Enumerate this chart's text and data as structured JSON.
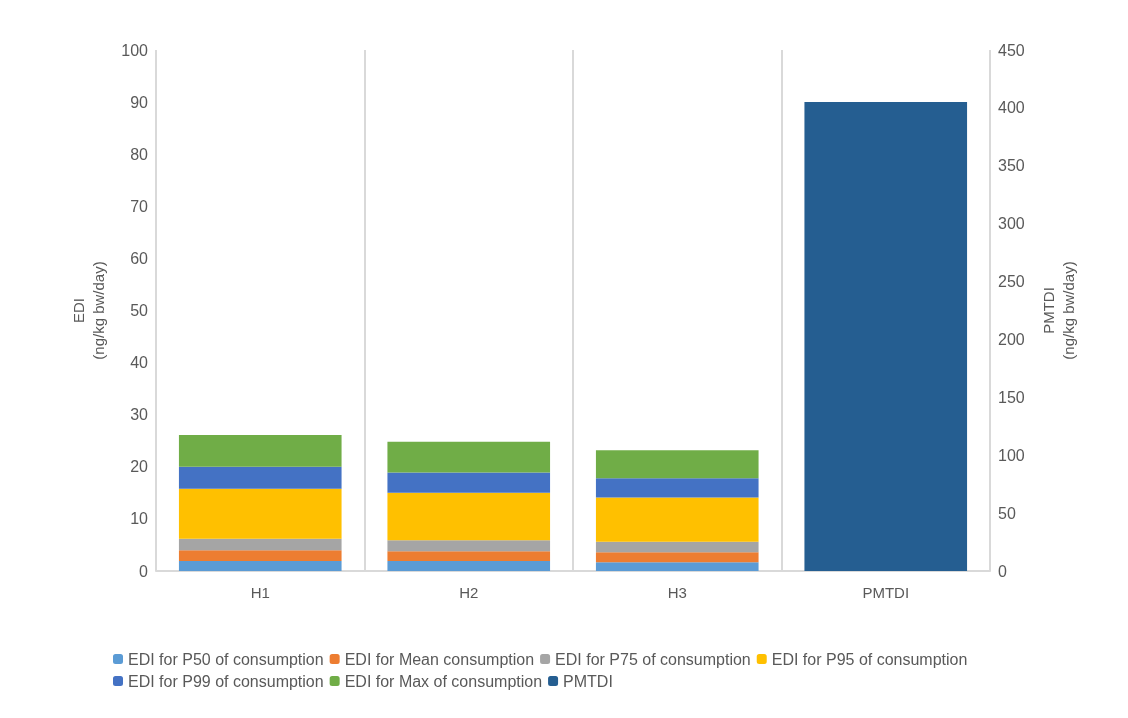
{
  "chart_data": {
    "type": "bar",
    "stacked": true,
    "categories": [
      "H1",
      "H2",
      "H3",
      "PMTDI"
    ],
    "ylabel": "EDI\n(ng/kg bw/day)",
    "y2label": "PMTDI\n(ng/kg bw/day)",
    "ylim": [
      0,
      100
    ],
    "yticks": [
      0,
      10,
      20,
      30,
      40,
      50,
      60,
      70,
      80,
      90,
      100
    ],
    "y2lim": [
      0,
      450
    ],
    "y2ticks": [
      0,
      50,
      100,
      150,
      200,
      250,
      300,
      350,
      400,
      450
    ],
    "grid": "x",
    "legend": "bottom",
    "series": [
      {
        "name": "EDI for P50 of consumption",
        "color": "#5b9bd5",
        "values": [
          1.9,
          1.9,
          1.7,
          null
        ]
      },
      {
        "name": "EDI for Mean consumption",
        "color": "#ed7d31",
        "values": [
          2.1,
          1.9,
          1.9,
          null
        ]
      },
      {
        "name": "EDI for P75 of consumption",
        "color": "#a5a5a5",
        "values": [
          2.2,
          2.1,
          2.0,
          null
        ]
      },
      {
        "name": "EDI for P95 of consumption",
        "color": "#ffc000",
        "values": [
          9.6,
          9.1,
          8.5,
          null
        ]
      },
      {
        "name": "EDI for P99 of consumption",
        "color": "#4472c4",
        "values": [
          4.2,
          3.9,
          3.7,
          null
        ]
      },
      {
        "name": "EDI for Max of consumption",
        "color": "#70ad47",
        "values": [
          6.1,
          5.9,
          5.4,
          null
        ]
      },
      {
        "name": "PMTDI",
        "color": "#255e91",
        "axis": "y2",
        "values": [
          null,
          null,
          null,
          405
        ]
      }
    ]
  }
}
